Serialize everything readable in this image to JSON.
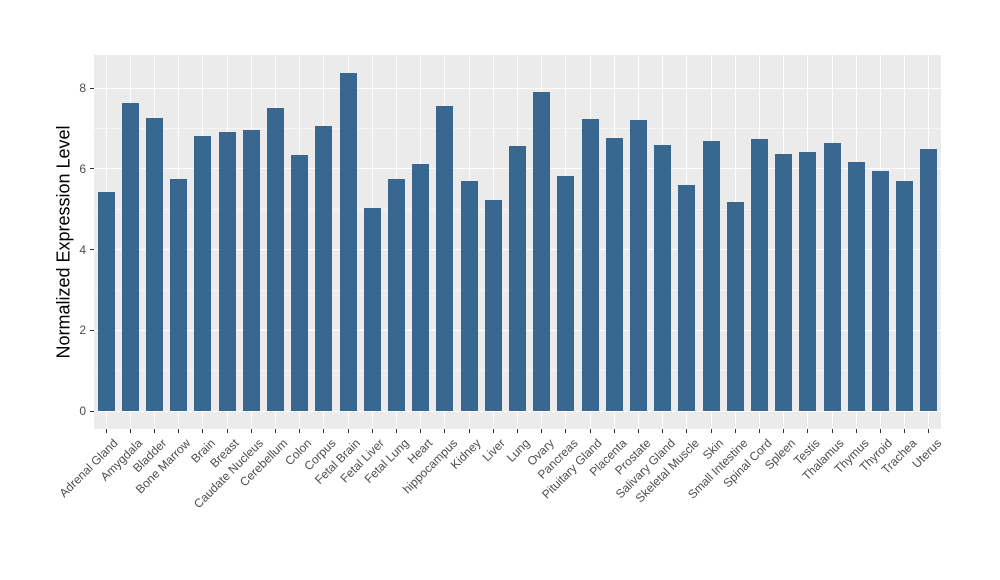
{
  "chart_data": {
    "type": "bar",
    "title": "",
    "xlabel": "",
    "ylabel": "Normalized Expression Level",
    "categories": [
      "Adrenal Gland",
      "Amygdala",
      "Bladder",
      "Bone Marrow",
      "Brain",
      "Breast",
      "Caudate Nucleus",
      "Cerebellum",
      "Colon",
      "Corpus",
      "Fetal Brain",
      "Fetal Liver",
      "Fetal Lung",
      "Heart",
      "hippocampus",
      "Kidney",
      "Liver",
      "Lung",
      "Ovary",
      "Pancreas",
      "Pituitary Gland",
      "Placenta",
      "Prostate",
      "Salivary Gland",
      "Skeletal Muscle",
      "Skin",
      "Small Intestine",
      "Spinal Cord",
      "Spleen",
      "Testis",
      "Thalamus",
      "Thymus",
      "Thyroid",
      "Trachea",
      "Uterus"
    ],
    "values": [
      5.43,
      7.62,
      7.27,
      5.75,
      6.82,
      6.91,
      6.96,
      7.52,
      6.34,
      7.07,
      8.37,
      5.02,
      5.76,
      6.11,
      7.56,
      5.69,
      5.24,
      6.57,
      7.9,
      5.83,
      7.24,
      6.77,
      7.21,
      6.6,
      5.59,
      6.68,
      5.18,
      6.75,
      6.37,
      6.41,
      6.65,
      6.18,
      5.94,
      5.69,
      6.49
    ],
    "yticks": [
      0,
      2,
      4,
      6,
      8
    ],
    "minor_yticks": [
      1,
      3,
      5,
      7
    ],
    "ylim": [
      -0.44,
      8.82
    ],
    "grid": true,
    "legend_position": "none",
    "bar_color": "#38678F",
    "panel_background": "#EBEBEB",
    "gridline_color": "#FFFFFF",
    "axis_text_color": "#4D4D4D",
    "axis_title_color": "#000000"
  }
}
